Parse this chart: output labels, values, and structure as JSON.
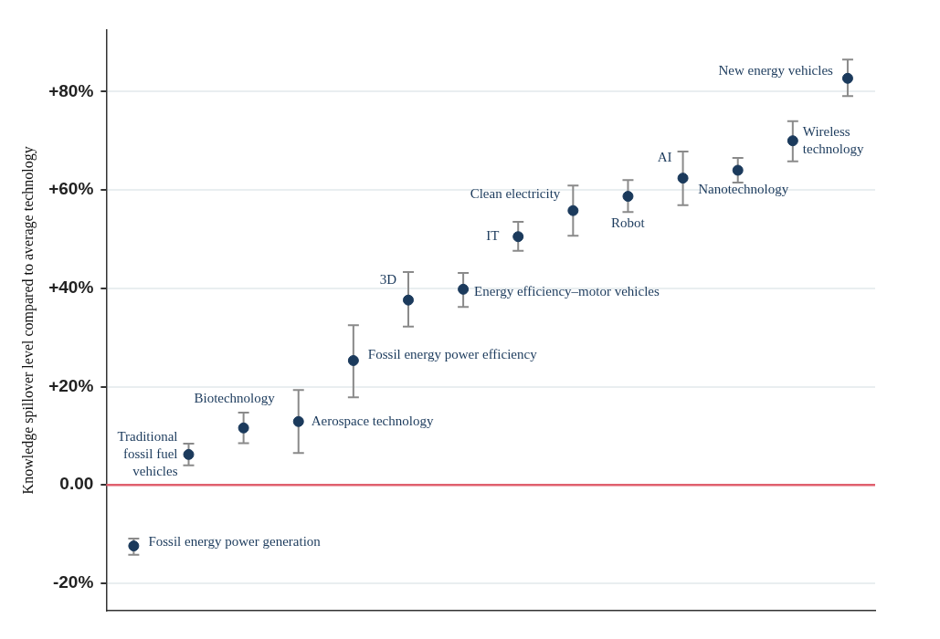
{
  "chart_data": {
    "type": "scatter",
    "ylabel": "Knowledge spillover level compared to average technology",
    "categories": [
      null,
      null,
      null,
      null,
      null,
      null,
      null,
      null,
      null,
      null,
      null,
      null,
      null,
      null
    ],
    "ylim": [
      -25.5,
      92.5
    ],
    "yticks": [
      {
        "value": -20,
        "label": "-20%"
      },
      {
        "value": 0,
        "label": "0.00"
      },
      {
        "value": 20,
        "label": "+20%"
      },
      {
        "value": 40,
        "label": "+40%"
      },
      {
        "value": 60,
        "label": "+60%"
      },
      {
        "value": 80,
        "label": "+80%"
      }
    ],
    "tick_labels": "y",
    "grid": "y",
    "legend": false,
    "marker": "circle",
    "ref_lines": [
      {
        "axis": "y",
        "value": 0,
        "color": "#e0606e"
      }
    ],
    "series": [
      {
        "name": "Fossil energy power generation",
        "color": "#1b3a5c",
        "values": [
          -12.4,
          null,
          null,
          null,
          null,
          null,
          null,
          null,
          null,
          null,
          null,
          null,
          null,
          null
        ],
        "errors": [
          [
            -14.2,
            -10.9
          ],
          null,
          null,
          null,
          null,
          null,
          null,
          null,
          null,
          null,
          null,
          null,
          null,
          null
        ]
      },
      {
        "name": "Traditional fossil fuel vehicles",
        "color": "#1b3a5c",
        "values": [
          null,
          6.2,
          null,
          null,
          null,
          null,
          null,
          null,
          null,
          null,
          null,
          null,
          null,
          null
        ],
        "errors": [
          null,
          [
            4.0,
            8.4
          ],
          null,
          null,
          null,
          null,
          null,
          null,
          null,
          null,
          null,
          null,
          null,
          null
        ]
      },
      {
        "name": "Biotechnology",
        "color": "#1b3a5c",
        "values": [
          null,
          null,
          11.6,
          null,
          null,
          null,
          null,
          null,
          null,
          null,
          null,
          null,
          null,
          null
        ],
        "errors": [
          null,
          null,
          [
            8.5,
            14.7
          ],
          null,
          null,
          null,
          null,
          null,
          null,
          null,
          null,
          null,
          null,
          null
        ]
      },
      {
        "name": "Aerospace technology",
        "color": "#1b3a5c",
        "values": [
          null,
          null,
          null,
          12.9,
          null,
          null,
          null,
          null,
          null,
          null,
          null,
          null,
          null,
          null
        ],
        "errors": [
          null,
          null,
          null,
          [
            6.5,
            19.3
          ],
          null,
          null,
          null,
          null,
          null,
          null,
          null,
          null,
          null,
          null
        ]
      },
      {
        "name": "Fossil energy power efficiency",
        "color": "#1b3a5c",
        "values": [
          null,
          null,
          null,
          null,
          25.3,
          null,
          null,
          null,
          null,
          null,
          null,
          null,
          null,
          null
        ],
        "errors": [
          null,
          null,
          null,
          null,
          [
            17.8,
            32.5
          ],
          null,
          null,
          null,
          null,
          null,
          null,
          null,
          null,
          null
        ]
      },
      {
        "name": "3D",
        "color": "#1b3a5c",
        "values": [
          null,
          null,
          null,
          null,
          null,
          37.6,
          null,
          null,
          null,
          null,
          null,
          null,
          null,
          null
        ],
        "errors": [
          null,
          null,
          null,
          null,
          null,
          [
            32.2,
            43.3
          ],
          null,
          null,
          null,
          null,
          null,
          null,
          null,
          null
        ]
      },
      {
        "name": "Energy efficiency–motor vehicles",
        "color": "#1b3a5c",
        "values": [
          null,
          null,
          null,
          null,
          null,
          null,
          39.8,
          null,
          null,
          null,
          null,
          null,
          null,
          null
        ],
        "errors": [
          null,
          null,
          null,
          null,
          null,
          null,
          [
            36.2,
            43.1
          ],
          null,
          null,
          null,
          null,
          null,
          null,
          null
        ]
      },
      {
        "name": "IT",
        "color": "#1b3a5c",
        "values": [
          null,
          null,
          null,
          null,
          null,
          null,
          null,
          50.5,
          null,
          null,
          null,
          null,
          null,
          null
        ],
        "errors": [
          null,
          null,
          null,
          null,
          null,
          null,
          null,
          [
            47.6,
            53.5
          ],
          null,
          null,
          null,
          null,
          null,
          null
        ]
      },
      {
        "name": "Clean electricity",
        "color": "#1b3a5c",
        "values": [
          null,
          null,
          null,
          null,
          null,
          null,
          null,
          null,
          55.8,
          null,
          null,
          null,
          null,
          null
        ],
        "errors": [
          null,
          null,
          null,
          null,
          null,
          null,
          null,
          null,
          [
            50.7,
            60.9
          ],
          null,
          null,
          null,
          null,
          null
        ]
      },
      {
        "name": "Robot",
        "color": "#1b3a5c",
        "values": [
          null,
          null,
          null,
          null,
          null,
          null,
          null,
          null,
          null,
          58.7,
          null,
          null,
          null,
          null
        ],
        "errors": [
          null,
          null,
          null,
          null,
          null,
          null,
          null,
          null,
          null,
          [
            55.5,
            62.0
          ],
          null,
          null,
          null,
          null
        ]
      },
      {
        "name": "AI",
        "color": "#1b3a5c",
        "values": [
          null,
          null,
          null,
          null,
          null,
          null,
          null,
          null,
          null,
          null,
          62.4,
          null,
          null,
          null
        ],
        "errors": [
          null,
          null,
          null,
          null,
          null,
          null,
          null,
          null,
          null,
          null,
          [
            56.9,
            67.8
          ],
          null,
          null,
          null
        ]
      },
      {
        "name": "Nanotechnology",
        "color": "#1b3a5c",
        "values": [
          null,
          null,
          null,
          null,
          null,
          null,
          null,
          null,
          null,
          null,
          null,
          64.0,
          null,
          null
        ],
        "errors": [
          null,
          null,
          null,
          null,
          null,
          null,
          null,
          null,
          null,
          null,
          null,
          [
            61.5,
            66.5
          ],
          null,
          null
        ]
      },
      {
        "name": "Wireless technology",
        "color": "#1b3a5c",
        "values": [
          null,
          null,
          null,
          null,
          null,
          null,
          null,
          null,
          null,
          null,
          null,
          null,
          70.0,
          null
        ],
        "errors": [
          null,
          null,
          null,
          null,
          null,
          null,
          null,
          null,
          null,
          null,
          null,
          null,
          [
            65.8,
            74.0
          ],
          null
        ]
      },
      {
        "name": "New energy vehicles",
        "color": "#1b3a5c",
        "values": [
          null,
          null,
          null,
          null,
          null,
          null,
          null,
          null,
          null,
          null,
          null,
          null,
          null,
          82.7
        ],
        "errors": [
          null,
          null,
          null,
          null,
          null,
          null,
          null,
          null,
          null,
          null,
          null,
          null,
          null,
          [
            79.1,
            86.5
          ]
        ]
      }
    ]
  }
}
